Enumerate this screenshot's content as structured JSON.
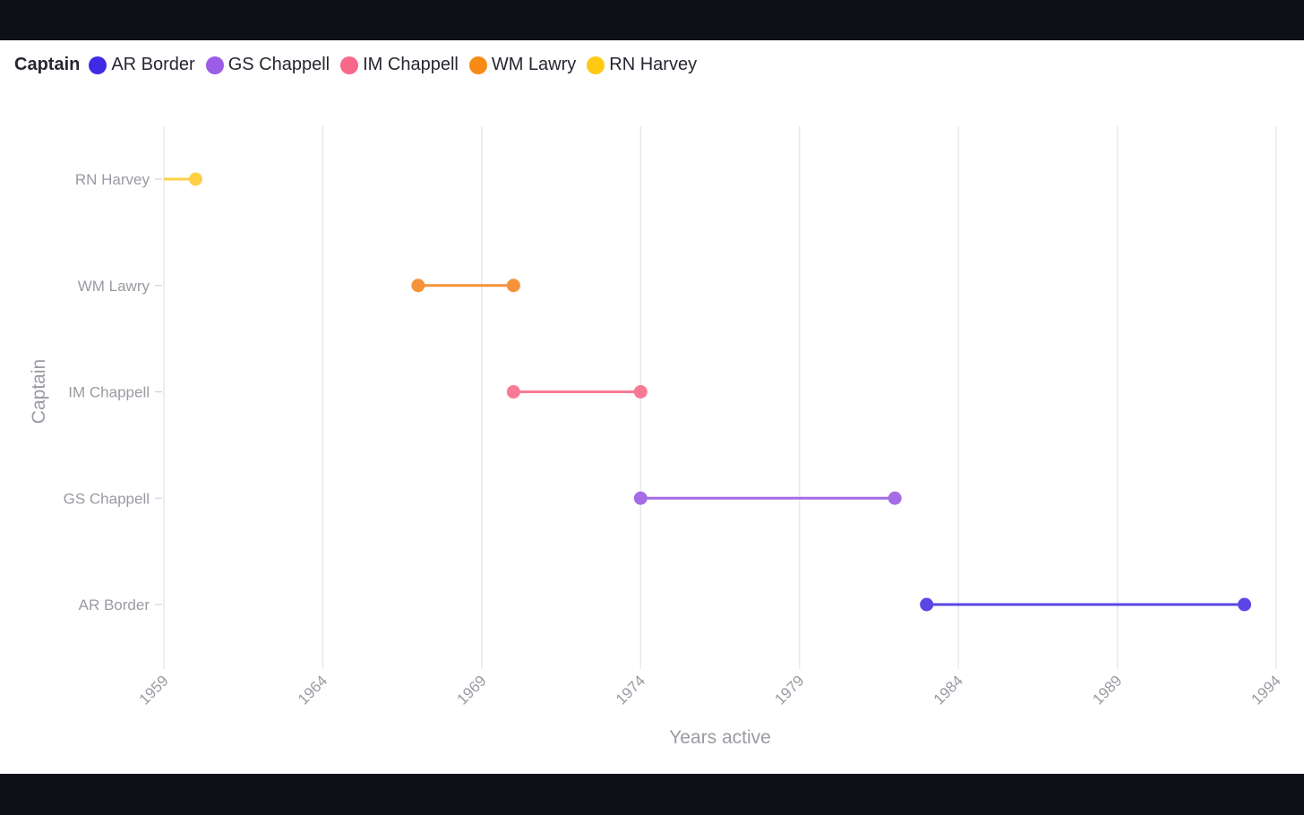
{
  "chart_data": {
    "type": "dumbbell",
    "title": "",
    "xlabel": "Years active",
    "ylabel": "Captain",
    "xlim": [
      1959,
      1994
    ],
    "x_ticks": [
      1959,
      1964,
      1969,
      1974,
      1979,
      1984,
      1989,
      1994
    ],
    "x_tick_labels": [
      "1959",
      "1964",
      "1969",
      "1974",
      "1979",
      "1984",
      "1989",
      "1994"
    ],
    "categories": [
      "RN Harvey",
      "WM Lawry",
      "IM Chappell",
      "GS Chappell",
      "AR Border"
    ],
    "legend": {
      "title": "Captain",
      "position": "top-left",
      "entries": [
        "AR Border",
        "GS Chappell",
        "IM Chappell",
        "WM Lawry",
        "RN Harvey"
      ]
    },
    "grid": {
      "x": true,
      "y": false
    },
    "series": [
      {
        "name": "RN Harvey",
        "start": 1959,
        "end": 1960,
        "color": "#FFD046",
        "show_start_marker": false
      },
      {
        "name": "WM Lawry",
        "start": 1967,
        "end": 1970,
        "color": "#F6923A",
        "show_start_marker": true
      },
      {
        "name": "IM Chappell",
        "start": 1970,
        "end": 1974,
        "color": "#F77A95",
        "show_start_marker": true
      },
      {
        "name": "GS Chappell",
        "start": 1974,
        "end": 1982,
        "color": "#A56CE6",
        "show_start_marker": true
      },
      {
        "name": "AR Border",
        "start": 1983,
        "end": 1993,
        "color": "#5B46E5",
        "show_start_marker": true
      }
    ]
  },
  "legend_colors": {
    "AR Border": "#3F2BE5",
    "GS Chappell": "#9B5CE6",
    "IM Chappell": "#F7688A",
    "WM Lawry": "#F78A14",
    "RN Harvey": "#FFC914"
  }
}
